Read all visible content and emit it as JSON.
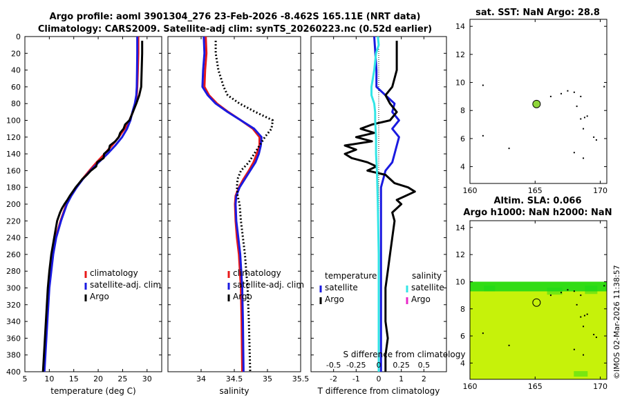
{
  "header": {
    "line1": "Argo profile: aoml 3901304_276 23-Feb-2026 -8.462S 165.11E (NRT data)",
    "line2": "Climatology: CARS2009. Satellite-adj clim: synTS_20260223.nc (0.52d earlier)"
  },
  "timestamp": "©IMOS 02-Mar-2026 11:38:57",
  "colors": {
    "climatology": "#e81818",
    "satellite": "#1a1ae0",
    "argo": "#000000",
    "sal_satellite": "#33e6e6",
    "sal_argo": "#e829c8",
    "sst_marker": "#8fd63a",
    "sla_field_low": "#c6f20a",
    "sla_field_high": "#18d818"
  },
  "chart_data": [
    {
      "id": "temperature",
      "type": "line",
      "xlabel": "temperature (deg C)",
      "ylabel": "",
      "xlim": [
        5,
        33
      ],
      "ylim": [
        400,
        0
      ],
      "xticks": [
        "5",
        "10",
        "15",
        "20",
        "25",
        "30"
      ],
      "yticks": [
        "0",
        "20",
        "40",
        "60",
        "80",
        "100",
        "120",
        "140",
        "160",
        "180",
        "200",
        "220",
        "240",
        "260",
        "280",
        "300",
        "320",
        "340",
        "360",
        "380",
        "400"
      ],
      "legend": {
        "placement": "lower-right",
        "entries": [
          "climatology",
          "satellite-adj. clim",
          "Argo"
        ]
      },
      "series": [
        {
          "name": "climatology",
          "color_key": "climatology",
          "depth": [
            0,
            20,
            40,
            60,
            70,
            80,
            90,
            100,
            110,
            120,
            130,
            140,
            150,
            160,
            170,
            180,
            190,
            200,
            220,
            240,
            260,
            280,
            300,
            340,
            400
          ],
          "values": [
            28.2,
            28.2,
            28.1,
            28.0,
            27.9,
            27.6,
            27.1,
            26.4,
            25.4,
            24.2,
            22.8,
            21.3,
            19.7,
            18.2,
            16.8,
            15.5,
            14.4,
            13.5,
            12.3,
            11.3,
            10.7,
            10.3,
            9.9,
            9.5,
            8.9
          ]
        },
        {
          "name": "satellite-adj. clim",
          "color_key": "satellite",
          "depth": [
            0,
            20,
            40,
            60,
            70,
            80,
            90,
            100,
            110,
            120,
            130,
            140,
            150,
            160,
            170,
            180,
            190,
            200,
            220,
            240,
            260,
            280,
            300,
            340,
            400
          ],
          "values": [
            28.0,
            28.0,
            27.95,
            27.9,
            27.8,
            27.5,
            27.0,
            26.6,
            25.9,
            24.9,
            23.5,
            21.9,
            20.1,
            18.4,
            16.9,
            15.6,
            14.5,
            13.6,
            12.4,
            11.4,
            10.8,
            10.4,
            10.0,
            9.6,
            9.0
          ]
        },
        {
          "name": "Argo",
          "color_key": "argo",
          "depth": [
            5,
            20,
            40,
            60,
            70,
            80,
            90,
            100,
            105,
            110,
            115,
            120,
            125,
            130,
            135,
            140,
            145,
            150,
            155,
            160,
            165,
            170,
            175,
            180,
            185,
            190,
            195,
            200,
            205,
            210,
            220,
            240,
            260,
            280,
            300,
            340,
            400
          ],
          "values": [
            29.0,
            29.0,
            28.9,
            28.8,
            28.4,
            27.8,
            27.1,
            26.4,
            25.5,
            25.2,
            24.5,
            24.2,
            23.5,
            22.4,
            22.2,
            21.2,
            21.1,
            19.8,
            19.6,
            18.5,
            17.7,
            16.8,
            16.1,
            15.4,
            14.8,
            14.2,
            13.7,
            13.1,
            12.6,
            12.2,
            11.6,
            11.0,
            10.4,
            10.0,
            9.7,
            9.3,
            8.7
          ]
        }
      ]
    },
    {
      "id": "salinity",
      "type": "line",
      "xlabel": "salinity",
      "xlim": [
        33.5,
        35.5
      ],
      "ylim": [
        400,
        0
      ],
      "xticks": [
        "34",
        "34.5",
        "35",
        "35.5"
      ],
      "legend": {
        "placement": "lower-right",
        "entries": [
          "climatology",
          "satellite-adj. clim",
          "Argo"
        ]
      },
      "series": [
        {
          "name": "climatology",
          "color_key": "climatology",
          "depth": [
            0,
            20,
            40,
            60,
            70,
            80,
            90,
            100,
            110,
            120,
            130,
            140,
            150,
            160,
            170,
            180,
            190,
            200,
            220,
            240,
            260,
            300,
            340,
            400
          ],
          "values": [
            34.07,
            34.08,
            34.06,
            34.05,
            34.12,
            34.24,
            34.41,
            34.6,
            34.78,
            34.88,
            34.88,
            34.84,
            34.79,
            34.72,
            34.64,
            34.57,
            34.52,
            34.51,
            34.52,
            34.54,
            34.57,
            34.6,
            34.61,
            34.62
          ]
        },
        {
          "name": "satellite-adj. clim",
          "color_key": "satellite",
          "depth": [
            0,
            20,
            40,
            60,
            70,
            80,
            90,
            100,
            110,
            120,
            130,
            140,
            150,
            160,
            170,
            180,
            190,
            200,
            220,
            240,
            260,
            300,
            340,
            400
          ],
          "values": [
            34.04,
            34.05,
            34.03,
            34.02,
            34.1,
            34.22,
            34.4,
            34.6,
            34.8,
            34.91,
            34.9,
            34.87,
            34.82,
            34.74,
            34.66,
            34.58,
            34.53,
            34.52,
            34.53,
            34.56,
            34.59,
            34.62,
            34.63,
            34.64
          ]
        },
        {
          "name": "Argo",
          "color_key": "argo",
          "depth": [
            5,
            20,
            40,
            60,
            70,
            80,
            90,
            100,
            110,
            120,
            130,
            140,
            150,
            160,
            170,
            180,
            190,
            200,
            220,
            240,
            260,
            300,
            340,
            400
          ],
          "values": [
            34.22,
            34.22,
            34.26,
            34.34,
            34.4,
            34.58,
            34.82,
            35.08,
            35.06,
            34.96,
            34.88,
            34.8,
            34.72,
            34.6,
            34.55,
            34.54,
            34.55,
            34.58,
            34.6,
            34.63,
            34.66,
            34.7,
            34.72,
            34.74
          ]
        }
      ]
    },
    {
      "id": "difference",
      "type": "line",
      "xlabel": "T difference from climatology",
      "xlabel_top": "S difference from climatology",
      "xlim": [
        -3,
        3
      ],
      "ylim": [
        400,
        0
      ],
      "xticks": [
        "-2",
        "-1",
        "0",
        "1",
        "2"
      ],
      "xticks_top": [
        "-0.5",
        "-0.25",
        "0",
        "0.25",
        "0.5"
      ],
      "legend": {
        "placement": "upper",
        "temperature_title": "temperature",
        "salinity_title": "salinity",
        "entries_t": [
          "satellite",
          "Argo"
        ],
        "entries_s": [
          "satellite",
          "Argo"
        ]
      },
      "series": [
        {
          "name": "T satellite",
          "color_key": "satellite",
          "depth": [
            0,
            20,
            40,
            60,
            70,
            80,
            90,
            100,
            110,
            120,
            130,
            140,
            150,
            160,
            180,
            200,
            220,
            260,
            300,
            340,
            400
          ],
          "values": [
            -0.2,
            -0.15,
            -0.1,
            -0.1,
            0.3,
            0.7,
            0.6,
            0.9,
            0.6,
            0.9,
            0.8,
            0.7,
            0.6,
            0.3,
            0.1,
            0.1,
            0.1,
            0.1,
            0.1,
            0.1,
            0.1
          ]
        },
        {
          "name": "T Argo",
          "color_key": "argo",
          "depth": [
            5,
            20,
            40,
            60,
            70,
            80,
            90,
            100,
            105,
            110,
            115,
            120,
            125,
            130,
            135,
            140,
            145,
            150,
            155,
            160,
            165,
            170,
            175,
            180,
            185,
            190,
            195,
            200,
            210,
            220,
            240,
            260,
            280,
            300,
            320,
            340,
            360,
            380,
            400
          ],
          "values": [
            0.8,
            0.8,
            0.8,
            0.6,
            0.3,
            0.5,
            0.8,
            0.5,
            -0.3,
            -0.8,
            -0.2,
            -1.0,
            -0.3,
            -1.5,
            -1.0,
            -1.5,
            -1.2,
            -0.5,
            -0.1,
            -0.5,
            0.3,
            0.5,
            0.7,
            1.3,
            1.6,
            1.2,
            0.8,
            1.0,
            0.6,
            0.7,
            0.6,
            0.5,
            0.4,
            0.3,
            0.3,
            0.3,
            0.4,
            0.3,
            0.3
          ]
        },
        {
          "name": "S satellite",
          "color_key": "sal_satellite",
          "depth": [
            0,
            10,
            20,
            40,
            60,
            70,
            80,
            90,
            100,
            120,
            140,
            160,
            200,
            260,
            300,
            400
          ],
          "values": [
            -0.01,
            0.0,
            -0.03,
            -0.05,
            -0.08,
            -0.08,
            -0.05,
            -0.04,
            -0.04,
            -0.03,
            -0.03,
            -0.02,
            -0.01,
            0.0,
            0.0,
            0.0
          ]
        }
      ]
    },
    {
      "id": "sst-map",
      "type": "scatter",
      "title": "sat. SST: NaN Argo: 28.8",
      "xlim": [
        160,
        170.5
      ],
      "ylim": [
        2.8,
        14.5
      ],
      "xticks": [
        "160",
        "165",
        "170"
      ],
      "yticks": [
        "4",
        "6",
        "8",
        "10",
        "12",
        "14"
      ],
      "argo_position": {
        "lon": 165.11,
        "lat": 8.462
      },
      "islands": [
        [
          161,
          9.8
        ],
        [
          161,
          6.2
        ],
        [
          163,
          5.3
        ],
        [
          166.2,
          9.0
        ],
        [
          167,
          9.2
        ],
        [
          167.5,
          9.4
        ],
        [
          168,
          9.3
        ],
        [
          168.2,
          8.3
        ],
        [
          168.5,
          7.4
        ],
        [
          168.8,
          7.5
        ],
        [
          169,
          7.6
        ],
        [
          168.7,
          6.7
        ],
        [
          169.5,
          6.1
        ],
        [
          169.7,
          5.9
        ],
        [
          168,
          5.0
        ],
        [
          168.7,
          4.6
        ],
        [
          170.3,
          9.7
        ],
        [
          168.5,
          9.0
        ]
      ]
    },
    {
      "id": "sla-map",
      "type": "heatmap",
      "title1": "Altim. SLA: 0.066",
      "title2": "Argo h1000: NaN h2000: NaN",
      "xlim": [
        160,
        170.5
      ],
      "ylim": [
        2.8,
        14.5
      ],
      "xticks": [
        "160",
        "165",
        "170"
      ],
      "yticks": [
        "4",
        "6",
        "8",
        "10",
        "12",
        "14"
      ],
      "field_lat_max": 10,
      "argo_position": {
        "lon": 165.11,
        "lat": 8.462
      },
      "islands": [
        [
          161,
          6.2
        ],
        [
          163,
          5.3
        ],
        [
          166.2,
          9.0
        ],
        [
          167,
          9.2
        ],
        [
          167.5,
          9.4
        ],
        [
          168,
          9.3
        ],
        [
          168.2,
          8.3
        ],
        [
          168.5,
          7.4
        ],
        [
          168.8,
          7.5
        ],
        [
          169,
          7.6
        ],
        [
          168.7,
          6.7
        ],
        [
          169.5,
          6.1
        ],
        [
          169.7,
          5.9
        ],
        [
          168,
          5.0
        ],
        [
          168.7,
          4.6
        ],
        [
          170.3,
          9.7
        ],
        [
          168.5,
          9.0
        ]
      ]
    }
  ]
}
